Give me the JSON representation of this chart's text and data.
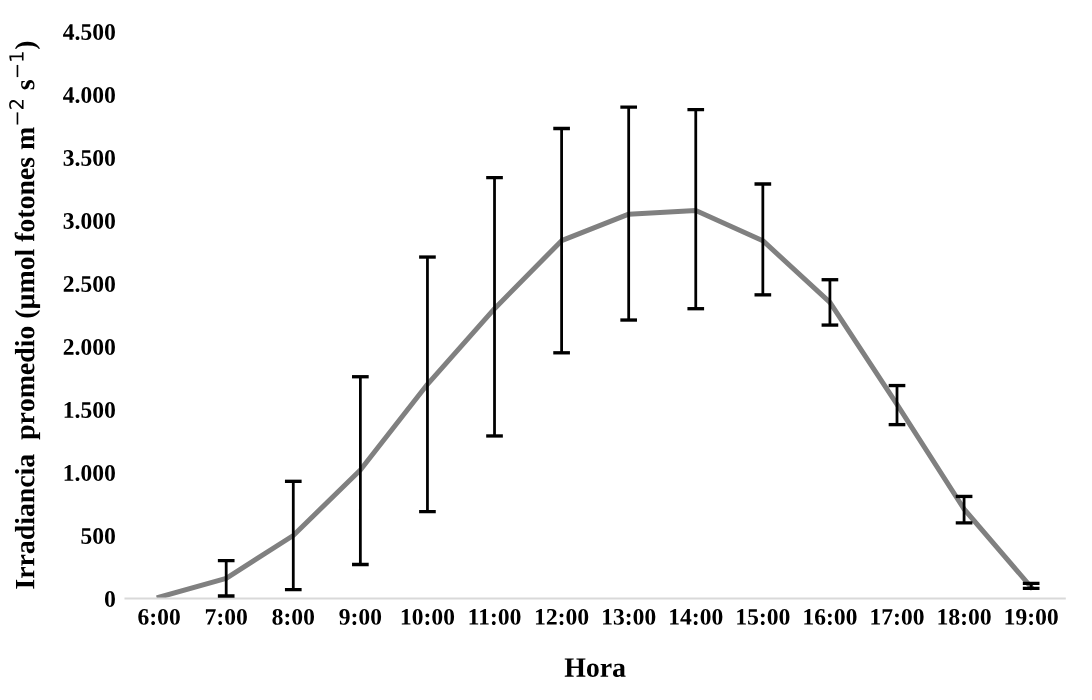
{
  "chart_data": {
    "type": "line",
    "xlabel": "Hora",
    "ylabel": "Irradiancia  promedio (µmol fotones m$^{−2}$ s$^{−1}$)",
    "categories": [
      "6:00",
      "7:00",
      "8:00",
      "9:00",
      "10:00",
      "11:00",
      "12:00",
      "13:00",
      "14:00",
      "15:00",
      "16:00",
      "17:00",
      "18:00",
      "19:00"
    ],
    "series": [
      {
        "color": "#808080",
        "values": [
          10,
          160,
          500,
          1020,
          1700,
          2300,
          2840,
          3050,
          3080,
          2840,
          2350,
          1540,
          710,
          90
        ],
        "errors": [
          null,
          [
            20,
            300
          ],
          [
            70,
            930
          ],
          [
            270,
            1760
          ],
          [
            690,
            2710
          ],
          [
            1290,
            3340
          ],
          [
            1950,
            3730
          ],
          [
            2210,
            3900
          ],
          [
            2300,
            3880
          ],
          [
            2410,
            3290
          ],
          [
            2170,
            2530
          ],
          [
            1380,
            1690
          ],
          [
            600,
            810
          ],
          [
            80,
            120
          ]
        ]
      }
    ],
    "ylim": [
      0,
      4500
    ],
    "yticks": [
      0,
      500,
      {
        "value": 1000,
        "label": "1.000"
      },
      {
        "value": 1500,
        "label": "1.500"
      },
      {
        "value": 2000,
        "label": "2.000"
      },
      {
        "value": 2500,
        "label": "2.500"
      },
      {
        "value": 3000,
        "label": "3.000"
      },
      {
        "value": 3500,
        "label": "3.500"
      },
      {
        "value": 4000,
        "label": "4.000"
      },
      {
        "value": 4500,
        "label": "4.500"
      }
    ],
    "grid": false,
    "legend": false,
    "marker": "none",
    "line_style": "solid"
  }
}
